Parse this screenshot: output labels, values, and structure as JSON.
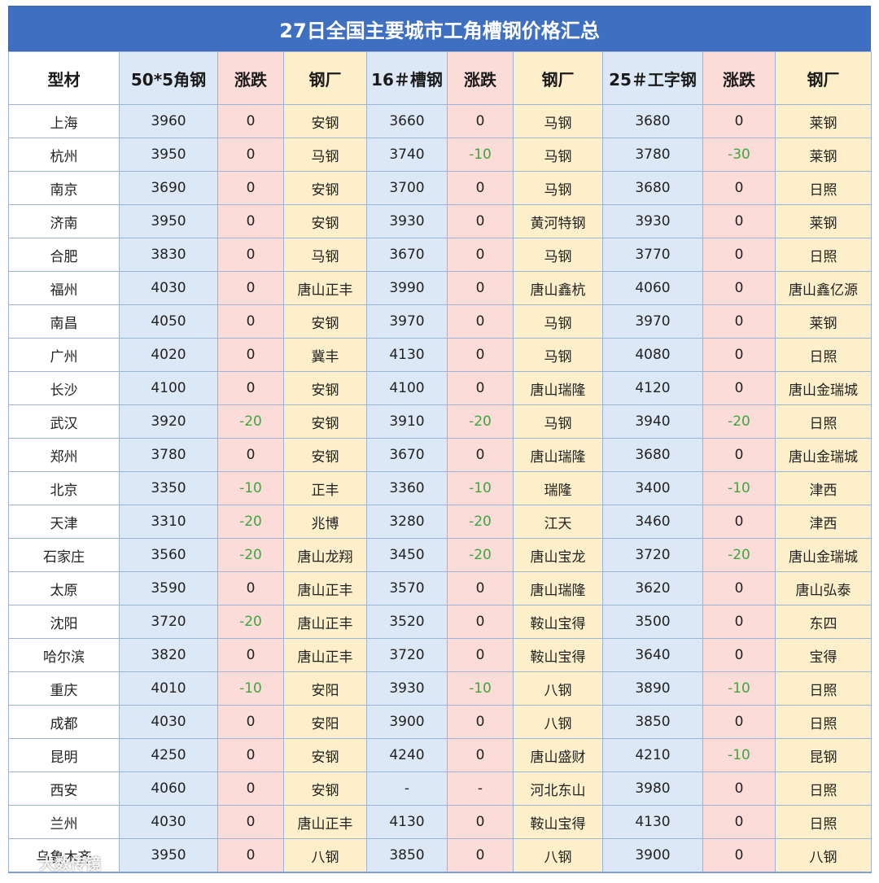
{
  "title": "27日全国主要城市工角槽钢价格汇总",
  "headers": [
    "型材",
    "50*5角钢",
    "涨跌",
    "钢厂",
    "16＃槽钢",
    "涨跌",
    "钢厂",
    "25＃工字钢",
    "涨跌",
    "钢厂"
  ],
  "rows": [
    [
      "上海",
      "3960",
      "0",
      "安钢",
      "3660",
      "0",
      "马钢",
      "3680",
      "0",
      "莱钢"
    ],
    [
      "杭州",
      "3950",
      "0",
      "马钢",
      "3740",
      "-10",
      "马钢",
      "3780",
      "-30",
      "莱钢"
    ],
    [
      "南京",
      "3690",
      "0",
      "安钢",
      "3700",
      "0",
      "马钢",
      "3680",
      "0",
      "日照"
    ],
    [
      "济南",
      "3950",
      "0",
      "安钢",
      "3930",
      "0",
      "黄河特钢",
      "3930",
      "0",
      "莱钢"
    ],
    [
      "合肥",
      "3830",
      "0",
      "马钢",
      "3670",
      "0",
      "马钢",
      "3770",
      "0",
      "日照"
    ],
    [
      "福州",
      "4030",
      "0",
      "唐山正丰",
      "3990",
      "0",
      "唐山鑫杭",
      "4060",
      "0",
      "唐山鑫亿源"
    ],
    [
      "南昌",
      "4050",
      "0",
      "安钢",
      "3970",
      "0",
      "马钢",
      "3970",
      "0",
      "莱钢"
    ],
    [
      "广州",
      "4020",
      "0",
      "冀丰",
      "4130",
      "0",
      "马钢",
      "4080",
      "0",
      "日照"
    ],
    [
      "长沙",
      "4100",
      "0",
      "安钢",
      "4100",
      "0",
      "唐山瑞隆",
      "4120",
      "0",
      "唐山金瑞城"
    ],
    [
      "武汉",
      "3920",
      "-20",
      "安钢",
      "3910",
      "-20",
      "马钢",
      "3940",
      "-20",
      "日照"
    ],
    [
      "郑州",
      "3780",
      "0",
      "安钢",
      "3670",
      "0",
      "唐山瑞隆",
      "3680",
      "0",
      "唐山金瑞城"
    ],
    [
      "北京",
      "3350",
      "-10",
      "正丰",
      "3360",
      "-10",
      "瑞隆",
      "3400",
      "-10",
      "津西"
    ],
    [
      "天津",
      "3310",
      "-20",
      "兆博",
      "3280",
      "-20",
      "江天",
      "3460",
      "0",
      "津西"
    ],
    [
      "石家庄",
      "3560",
      "-20",
      "唐山龙翔",
      "3450",
      "-20",
      "唐山宝龙",
      "3720",
      "-20",
      "唐山金瑞城"
    ],
    [
      "太原",
      "3590",
      "0",
      "唐山正丰",
      "3570",
      "0",
      "唐山瑞隆",
      "3620",
      "0",
      "唐山弘泰"
    ],
    [
      "沈阳",
      "3720",
      "-20",
      "唐山正丰",
      "3520",
      "0",
      "鞍山宝得",
      "3500",
      "0",
      "东四"
    ],
    [
      "哈尔滨",
      "3820",
      "0",
      "唐山正丰",
      "3720",
      "0",
      "鞍山宝得",
      "3640",
      "0",
      "宝得"
    ],
    [
      "重庆",
      "4010",
      "-10",
      "安阳",
      "3930",
      "-10",
      "八钢",
      "3890",
      "-10",
      "日照"
    ],
    [
      "成都",
      "4030",
      "0",
      "安阳",
      "3900",
      "0",
      "八钢",
      "3850",
      "0",
      "日照"
    ],
    [
      "昆明",
      "4250",
      "0",
      "安钢",
      "4240",
      "0",
      "唐山盛财",
      "4210",
      "-10",
      "昆钢"
    ],
    [
      "西安",
      "4060",
      "0",
      "安钢",
      "-",
      "-",
      "河北东山",
      "3980",
      "0",
      "日照"
    ],
    [
      "兰州",
      "4030",
      "0",
      "唐山正丰",
      "4130",
      "0",
      "鞍山宝得",
      "4130",
      "0",
      "日照"
    ],
    [
      "乌鲁木齐",
      "3950",
      "0",
      "八钢",
      "3850",
      "0",
      "八钢",
      "3900",
      "0",
      "八钢"
    ]
  ],
  "watermark": {
    "icon": "watermark-logo-icon",
    "text": "大数传镜"
  },
  "colors": {
    "title_bg": "#3f6fc0",
    "price_bg": "#dde8f6",
    "change_bg": "#fbdcd8",
    "mill_bg": "#fcefc9",
    "negative": "#3aa83a"
  }
}
